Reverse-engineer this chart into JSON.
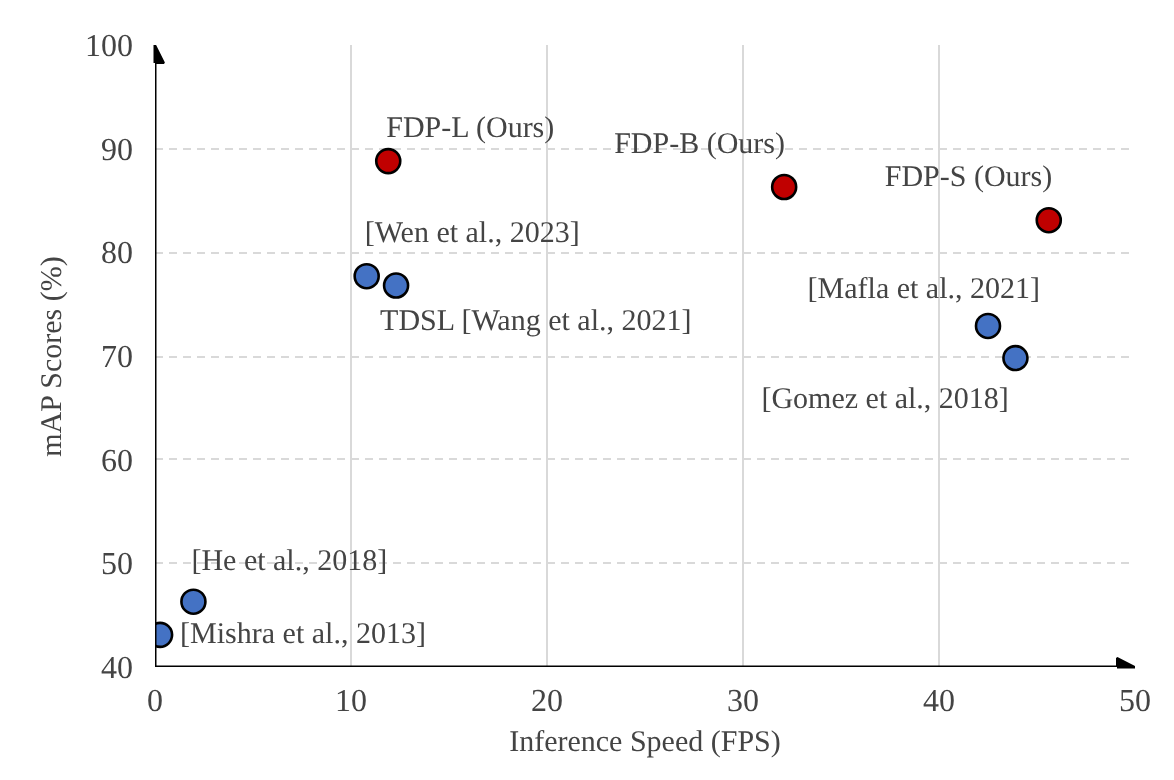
{
  "chart_data": {
    "type": "scatter",
    "xlabel": "Inference Speed (FPS)",
    "ylabel": "mAP Scores (%)",
    "xlim": [
      0,
      50
    ],
    "ylim": [
      40,
      100
    ],
    "xticks": [
      0,
      10,
      20,
      30,
      40,
      50
    ],
    "yticks": [
      40,
      50,
      60,
      70,
      80,
      90,
      100
    ],
    "grid": true,
    "marker": "circle",
    "series": [
      {
        "color": "#c00000",
        "x": [
          11.9,
          32.1,
          45.6
        ],
        "values": [
          88.8,
          86.3,
          83.1
        ]
      },
      {
        "color": "#4472c4",
        "x": [
          10.8,
          12.3,
          42.5,
          43.9,
          1.96,
          0.26
        ],
        "values": [
          77.7,
          76.8,
          72.9,
          69.8,
          46.3,
          43.1
        ]
      }
    ],
    "annotations": [
      {
        "text": "FDP-L (Ours)",
        "x": 11.9,
        "y": 88.8
      },
      {
        "text": "FDP-B (Ours)",
        "x": 32.1,
        "y": 86.3
      },
      {
        "text": "FDP-S (Ours)",
        "x": 45.6,
        "y": 83.1
      },
      {
        "text": "[Wen et al., 2023]",
        "x": 10.8,
        "y": 77.7
      },
      {
        "text": "TDSL [Wang et al., 2021]",
        "x": 12.3,
        "y": 76.8
      },
      {
        "text": "[Mafla et al., 2021]",
        "x": 42.5,
        "y": 72.9
      },
      {
        "text": "[Gomez et al., 2018]",
        "x": 43.9,
        "y": 69.8
      },
      {
        "text": "[He et al., 2018]",
        "x": 1.96,
        "y": 46.3
      },
      {
        "text": "[Mishra et al., 2013]",
        "x": 0.26,
        "y": 43.1
      }
    ]
  }
}
